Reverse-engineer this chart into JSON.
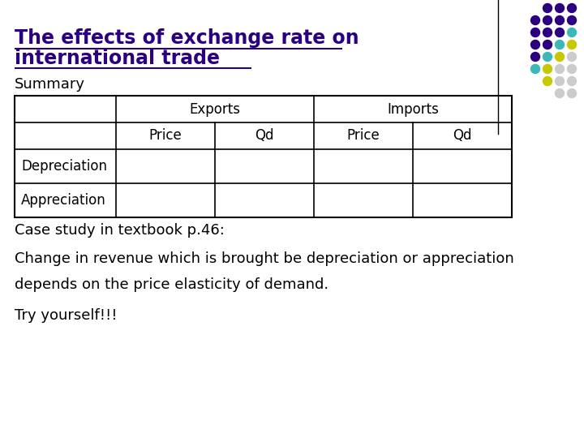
{
  "title_line1": "The effects of exchange rate on",
  "title_line2": "international trade",
  "summary_label": "Summary",
  "table_rows": [
    "Depreciation",
    "Appreciation"
  ],
  "sub_headers": [
    "Price",
    "Qd",
    "Price",
    "Qd"
  ],
  "bottom_texts": [
    "Case study in textbook p.46:",
    "Change in revenue which is brought be depreciation or appreciation",
    "depends on the price elasticity of demand.",
    "Try yourself!!!"
  ],
  "title_color": "#2b0080",
  "title_fontsize": 17,
  "summary_fontsize": 13,
  "table_fontsize": 12,
  "body_fontsize": 13,
  "bg_color": "#ffffff",
  "dot_grid": [
    [
      "#2b0080",
      "#2b0080",
      "#2b0080"
    ],
    [
      "#2b0080",
      "#2b0080",
      "#2b0080",
      "#2b0080"
    ],
    [
      "#2b0080",
      "#2b0080",
      "#2b0080",
      "#3db8b8"
    ],
    [
      "#2b0080",
      "#2b0080",
      "#3db8b8",
      "#c8c800"
    ],
    [
      "#2b0080",
      "#3db8b8",
      "#c8c800",
      "#cccccc"
    ],
    [
      "#3db8b8",
      "#c8c800",
      "#cccccc",
      "#cccccc"
    ],
    [
      "#c8c800",
      "#cccccc",
      "#cccccc"
    ],
    [
      "#cccccc",
      "#cccccc"
    ]
  ]
}
